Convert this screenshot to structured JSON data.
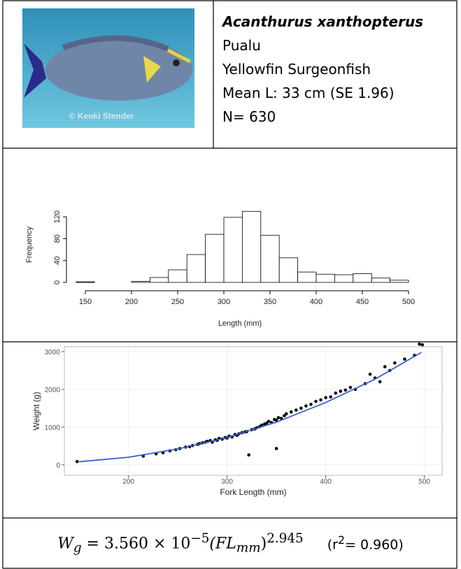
{
  "header": {
    "photo_credit": "© Keoki Stender",
    "scientific_name": "Acanthurus xanthopterus",
    "local_name": "Pualu",
    "common_name": "Yellowfin Surgeonfish",
    "mean_length": "Mean L: 33 cm (SE 1.96)",
    "sample_size": "N= 630"
  },
  "chart_data": [
    {
      "type": "histogram",
      "x_label": "Length (mm)",
      "y_label": "Frequency",
      "bins": [
        140,
        160,
        180,
        200,
        220,
        240,
        260,
        280,
        300,
        320,
        340,
        360,
        380,
        400,
        420,
        440,
        460,
        480,
        500
      ],
      "values": [
        1,
        0,
        0,
        2,
        9,
        23,
        51,
        88,
        119,
        130,
        86,
        45,
        19,
        15,
        14,
        16,
        8,
        4
      ],
      "xlim": [
        120,
        515
      ],
      "ylim": [
        0,
        140
      ],
      "xticks": [
        150,
        200,
        250,
        300,
        350,
        400,
        450,
        500
      ],
      "yticks": [
        0,
        40,
        80,
        120
      ],
      "color": "#ffffff"
    },
    {
      "type": "scatter",
      "x_label": "Fork Length (mm)",
      "y_label": "Weight (g)",
      "x": [
        148,
        215,
        228,
        235,
        242,
        248,
        252,
        258,
        262,
        265,
        270,
        272,
        275,
        278,
        280,
        283,
        285,
        288,
        290,
        292,
        295,
        298,
        300,
        302,
        305,
        308,
        310,
        312,
        315,
        318,
        320,
        322,
        325,
        328,
        330,
        333,
        335,
        338,
        340,
        342,
        345,
        348,
        350,
        350,
        352,
        355,
        358,
        360,
        365,
        370,
        375,
        380,
        385,
        390,
        395,
        400,
        405,
        410,
        415,
        420,
        425,
        430,
        440,
        445,
        450,
        455,
        460,
        465,
        470,
        480,
        490,
        495,
        498
      ],
      "values": [
        85,
        230,
        290,
        320,
        370,
        400,
        430,
        470,
        480,
        510,
        540,
        560,
        580,
        600,
        620,
        640,
        600,
        660,
        650,
        700,
        680,
        720,
        710,
        760,
        740,
        800,
        780,
        820,
        850,
        870,
        880,
        260,
        930,
        950,
        980,
        1010,
        1050,
        1080,
        1100,
        1150,
        1120,
        1200,
        1180,
        430,
        1250,
        1230,
        1300,
        1350,
        1400,
        1450,
        1500,
        1560,
        1600,
        1680,
        1720,
        1780,
        1800,
        1900,
        1950,
        1980,
        2050,
        2000,
        2150,
        2400,
        2300,
        2200,
        2600,
        2500,
        2700,
        2800,
        2900,
        3200,
        3180
      ],
      "color": "#000000",
      "fit": {
        "x": [
          150,
          200,
          250,
          300,
          350,
          400,
          450,
          497
        ],
        "values": [
          80,
          200,
          420,
          720,
          1130,
          1650,
          2270,
          2980
        ],
        "color": "#3b5fd0"
      },
      "xlim": [
        135,
        518
      ],
      "ylim": [
        -280,
        3130
      ],
      "xticks": [
        200,
        300,
        400,
        500
      ],
      "yticks": [
        0,
        1000,
        2000,
        3000
      ],
      "grid": true
    }
  ],
  "equation": {
    "lhs": "W",
    "lhs_sub": "g",
    "rhs": "= 3.560 × 10",
    "exp": "−5",
    "var": "(FL",
    "var_sub": "mm",
    "close": ")",
    "power": "2.945",
    "r_open": "(r",
    "r_sup": "2",
    "r_value": "= 0.960)"
  }
}
